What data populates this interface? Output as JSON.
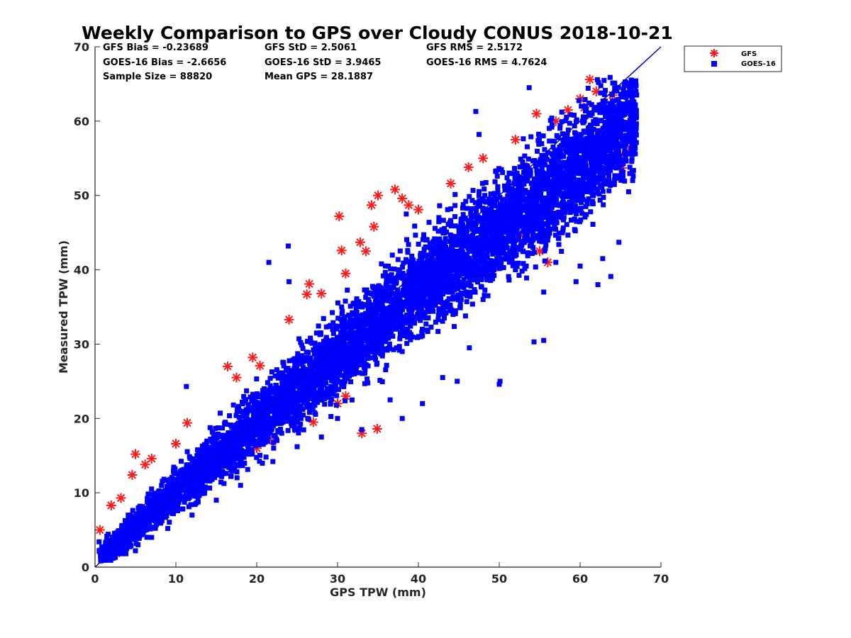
{
  "chart_data": {
    "type": "scatter",
    "title": "Weekly Comparison to GPS over Cloudy CONUS 2018-10-21",
    "xlabel": "GPS TPW (mm)",
    "ylabel": "Measured TPW (mm)",
    "xlim": [
      0,
      70
    ],
    "ylim": [
      0,
      70
    ],
    "xticks": [
      0,
      10,
      20,
      30,
      40,
      50,
      60,
      70
    ],
    "yticks": [
      0,
      10,
      20,
      30,
      40,
      50,
      60,
      70
    ],
    "grid": false,
    "legend_position": "outside-top-right",
    "reference_line": {
      "x": [
        0,
        70
      ],
      "y": [
        0,
        70
      ],
      "color": "#0000cc"
    },
    "stats": [
      [
        "GFS Bias = -0.23689",
        "GFS StD = 2.5061",
        "GFS RMS = 2.5172"
      ],
      [
        "GOES-16 Bias = -2.6656",
        "GOES-16 StD = 3.9465",
        "GOES-16 RMS = 4.7624"
      ],
      [
        "Sample Size = 88820",
        "Mean GPS = 28.1887"
      ]
    ],
    "series": [
      {
        "name": "GFS",
        "marker": "asterisk",
        "color": "#ff1a1a",
        "points": [
          [
            0.6,
            5
          ],
          [
            2,
            8.3
          ],
          [
            3.2,
            9.3
          ],
          [
            4.6,
            12.4
          ],
          [
            5,
            15.2
          ],
          [
            6.2,
            13.8
          ],
          [
            7,
            14.6
          ],
          [
            10,
            16.6
          ],
          [
            11.4,
            19.4
          ],
          [
            16.4,
            27
          ],
          [
            17.5,
            25.5
          ],
          [
            19.5,
            28.2
          ],
          [
            20.4,
            27.1
          ],
          [
            24,
            33.3
          ],
          [
            26.2,
            36.7
          ],
          [
            26.5,
            38.1
          ],
          [
            28,
            36.8
          ],
          [
            30.2,
            47.2
          ],
          [
            30.5,
            42.6
          ],
          [
            31,
            39.5
          ],
          [
            32.8,
            43.7
          ],
          [
            33.5,
            42.5
          ],
          [
            34.2,
            48.7
          ],
          [
            34.5,
            45.8
          ],
          [
            35,
            50
          ],
          [
            37.1,
            50.8
          ],
          [
            38,
            49.6
          ],
          [
            38.8,
            48.7
          ],
          [
            40,
            48.1
          ],
          [
            44,
            51.6
          ],
          [
            46.2,
            53.8
          ],
          [
            48,
            55
          ],
          [
            52,
            57.5
          ],
          [
            53,
            54
          ],
          [
            54.6,
            61
          ],
          [
            57,
            60
          ],
          [
            58.5,
            61.5
          ],
          [
            60,
            63
          ],
          [
            61.2,
            65.6
          ],
          [
            62,
            64
          ],
          [
            63,
            62.5
          ],
          [
            63.5,
            61
          ],
          [
            64,
            63.5
          ],
          [
            64.5,
            60.2
          ],
          [
            64,
            58
          ],
          [
            65,
            55.5
          ],
          [
            65.2,
            53.7
          ],
          [
            65.5,
            59.2
          ],
          [
            66,
            62
          ],
          [
            66.3,
            63.5
          ],
          [
            66.2,
            56.4
          ],
          [
            62.5,
            58.5
          ],
          [
            63,
            56
          ],
          [
            64,
            54.5
          ],
          [
            60.5,
            61.8
          ],
          [
            56,
            41
          ],
          [
            55,
            42.5
          ],
          [
            53,
            44.8
          ],
          [
            50,
            40.5
          ],
          [
            45,
            38
          ],
          [
            43,
            35
          ],
          [
            40,
            35
          ],
          [
            37.5,
            36.5
          ],
          [
            35,
            30.5
          ],
          [
            34.9,
            18.6
          ],
          [
            33,
            18
          ],
          [
            31,
            23
          ],
          [
            30,
            22
          ],
          [
            27,
            19.5
          ],
          [
            25,
            18.5
          ],
          [
            22,
            17
          ],
          [
            20,
            16
          ],
          [
            15,
            13
          ],
          [
            12,
            10.5
          ],
          [
            10,
            8.5
          ],
          [
            8,
            6.8
          ],
          [
            6,
            5.2
          ],
          [
            4,
            3.5
          ],
          [
            3,
            2
          ]
        ]
      },
      {
        "name": "GOES-16",
        "marker": "square",
        "color": "#0000ff",
        "cloud": {
          "x_range": [
            0.5,
            67
          ],
          "core_half_width_at": [
            [
              2,
              2.5
            ],
            [
              20,
              5.5
            ],
            [
              40,
              8
            ],
            [
              58,
              9.5
            ]
          ],
          "mean_offset_at": [
            [
              2,
              0.6
            ],
            [
              20,
              -0.5
            ],
            [
              40,
              -2.5
            ],
            [
              58,
              -6
            ]
          ]
        },
        "points": [
          [
            0.5,
            3.4
          ],
          [
            1.5,
            2.5
          ],
          [
            5,
            2.2
          ],
          [
            11.3,
            24.3
          ],
          [
            21.5,
            41
          ],
          [
            23.9,
            43.2
          ],
          [
            24,
            38.4
          ],
          [
            30.5,
            35
          ],
          [
            38.5,
            47.5
          ],
          [
            47.1,
            61.3
          ],
          [
            47.5,
            58.2
          ],
          [
            53.7,
            64.5
          ],
          [
            54.6,
            54.4
          ],
          [
            56.5,
            60.4
          ],
          [
            58.5,
            48.5
          ],
          [
            60,
            40.5
          ],
          [
            62.2,
            38
          ],
          [
            63.8,
            39.1
          ],
          [
            64.8,
            43.7
          ],
          [
            62.8,
            41.5
          ],
          [
            59.5,
            38.4
          ],
          [
            57,
            41
          ],
          [
            55.5,
            37
          ],
          [
            54.3,
            30.3
          ],
          [
            55.5,
            30.5
          ],
          [
            50.1,
            25
          ],
          [
            50,
            24.6
          ],
          [
            46.3,
            29.5
          ],
          [
            44.8,
            25
          ],
          [
            43,
            25.5
          ],
          [
            40.5,
            22
          ],
          [
            38,
            20
          ],
          [
            36.5,
            22.5
          ],
          [
            33,
            18.5
          ],
          [
            30,
            20
          ],
          [
            28,
            17.5
          ],
          [
            25,
            16.2
          ],
          [
            22,
            14.2
          ],
          [
            18,
            11
          ],
          [
            15,
            9
          ],
          [
            12,
            7
          ],
          [
            9,
            5.2
          ],
          [
            7,
            4
          ],
          [
            44,
            34.5
          ],
          [
            48,
            36
          ],
          [
            52,
            40
          ],
          [
            56,
            44
          ],
          [
            60,
            48
          ],
          [
            63,
            52
          ],
          [
            66,
            50.5
          ],
          [
            66.5,
            52
          ]
        ]
      }
    ]
  }
}
